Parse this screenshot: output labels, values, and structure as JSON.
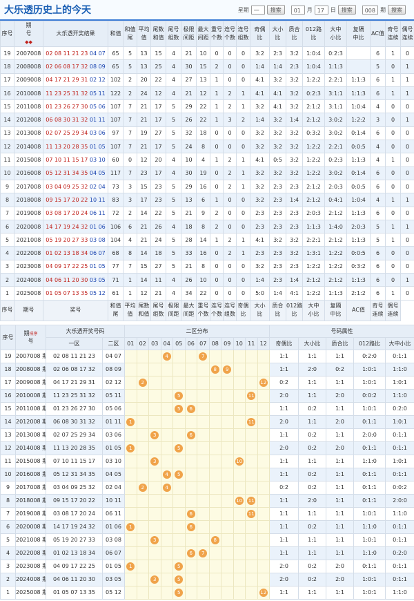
{
  "header": {
    "title": "大乐透历史上的今天",
    "controls": {
      "weekday_label": "星期",
      "weekday": "一",
      "month": "01",
      "month_unit": "月",
      "day": "17",
      "day_unit": "日",
      "issue": "008",
      "issue_unit": "期",
      "search_buttons": [
        "搜索",
        "搜索",
        "搜索"
      ]
    }
  },
  "table1": {
    "headers": [
      [
        "序号"
      ],
      [
        "期",
        "号"
      ],
      [
        "大乐透开奖结果"
      ],
      [
        "和值"
      ],
      [
        "和值",
        "尾"
      ],
      [
        "平均",
        "值"
      ],
      [
        "尾数",
        "和值"
      ],
      [
        "尾号",
        "组数"
      ],
      [
        "极限",
        "间距"
      ],
      [
        "最大",
        "间距"
      ],
      [
        "重号",
        "个数"
      ],
      [
        "连号",
        "个数"
      ],
      [
        "连号",
        "组数"
      ],
      [
        "奇偶",
        "比"
      ],
      [
        "大小",
        "比"
      ],
      [
        "质合",
        "比"
      ],
      [
        "012路",
        "比"
      ],
      [
        "大中",
        "小比"
      ],
      [
        "复隔",
        "中比"
      ],
      [
        "AC值"
      ],
      [
        "奇号",
        "连续"
      ],
      [
        "偶号",
        "连续"
      ]
    ],
    "rows": [
      [
        "19",
        "2007008",
        "02 08 11 21 23",
        "04 07",
        "65",
        "5",
        "13",
        "15",
        "4",
        "21",
        "10",
        "0",
        "0",
        "0",
        "3:2",
        "2:3",
        "3:2",
        "1:0:4",
        "0:2:3",
        "",
        "6",
        "1",
        "0"
      ],
      [
        "18",
        "2008008",
        "02 06 08 17 32",
        "08 09",
        "65",
        "5",
        "13",
        "25",
        "4",
        "30",
        "15",
        "2",
        "0",
        "0",
        "1:4",
        "1:4",
        "2:3",
        "1:0:4",
        "1:1:3",
        "",
        "5",
        "0",
        "1"
      ],
      [
        "17",
        "2009008",
        "04 17 21 29 31",
        "02 12",
        "102",
        "2",
        "20",
        "22",
        "4",
        "27",
        "13",
        "1",
        "0",
        "0",
        "4:1",
        "3:2",
        "3:2",
        "1:2:2",
        "2:2:1",
        "1:1:3",
        "6",
        "1",
        "1"
      ],
      [
        "16",
        "2010008",
        "11 23 25 31 32",
        "05 11",
        "122",
        "2",
        "24",
        "12",
        "4",
        "21",
        "12",
        "1",
        "2",
        "1",
        "4:1",
        "4:1",
        "3:2",
        "0:2:3",
        "3:1:1",
        "1:1:3",
        "6",
        "1",
        "1"
      ],
      [
        "15",
        "2011008",
        "01 23 26 27 30",
        "05 06",
        "107",
        "7",
        "21",
        "17",
        "5",
        "29",
        "22",
        "1",
        "2",
        "1",
        "3:2",
        "4:1",
        "3:2",
        "2:1:2",
        "3:1:1",
        "1:0:4",
        "4",
        "0",
        "0"
      ],
      [
        "14",
        "2012008",
        "06 08 30 31 32",
        "01 11",
        "107",
        "7",
        "21",
        "17",
        "5",
        "26",
        "22",
        "1",
        "3",
        "2",
        "1:4",
        "3:2",
        "1:4",
        "2:1:2",
        "3:0:2",
        "1:2:2",
        "3",
        "0",
        "1"
      ],
      [
        "13",
        "2013008",
        "02 07 25 29 34",
        "03 06",
        "97",
        "7",
        "19",
        "27",
        "5",
        "32",
        "18",
        "0",
        "0",
        "0",
        "3:2",
        "3:2",
        "3:2",
        "0:3:2",
        "3:0:2",
        "0:1:4",
        "6",
        "0",
        "0"
      ],
      [
        "12",
        "2014008",
        "11 13 20 28 35",
        "01 05",
        "107",
        "7",
        "21",
        "17",
        "5",
        "24",
        "8",
        "0",
        "0",
        "0",
        "3:2",
        "3:2",
        "3:2",
        "1:2:2",
        "2:2:1",
        "0:0:5",
        "4",
        "0",
        "0"
      ],
      [
        "11",
        "2015008",
        "07 10 11 15 17",
        "03 10",
        "60",
        "0",
        "12",
        "20",
        "4",
        "10",
        "4",
        "1",
        "2",
        "1",
        "4:1",
        "0:5",
        "3:2",
        "1:2:2",
        "0:2:3",
        "1:1:3",
        "4",
        "1",
        "0"
      ],
      [
        "10",
        "2016008",
        "05 12 31 34 35",
        "04 05",
        "117",
        "7",
        "23",
        "17",
        "4",
        "30",
        "19",
        "0",
        "2",
        "1",
        "3:2",
        "3:2",
        "3:2",
        "1:2:2",
        "3:0:2",
        "0:1:4",
        "6",
        "0",
        "0"
      ],
      [
        "9",
        "2017008",
        "03 04 09 25 32",
        "02 04",
        "73",
        "3",
        "15",
        "23",
        "5",
        "29",
        "16",
        "0",
        "2",
        "1",
        "3:2",
        "2:3",
        "2:3",
        "2:1:2",
        "2:0:3",
        "0:0:5",
        "6",
        "0",
        "0"
      ],
      [
        "8",
        "2018008",
        "09 15 17 20 22",
        "10 11",
        "83",
        "3",
        "17",
        "23",
        "5",
        "13",
        "6",
        "1",
        "0",
        "0",
        "3:2",
        "2:3",
        "1:4",
        "2:1:2",
        "0:4:1",
        "1:0:4",
        "4",
        "1",
        "1"
      ],
      [
        "7",
        "2019008",
        "03 08 17 20 24",
        "06 11",
        "72",
        "2",
        "14",
        "22",
        "5",
        "21",
        "9",
        "2",
        "0",
        "0",
        "2:3",
        "2:3",
        "2:3",
        "2:0:3",
        "2:1:2",
        "1:1:3",
        "6",
        "0",
        "0"
      ],
      [
        "6",
        "2020008",
        "14 17 19 24 32",
        "01 06",
        "106",
        "6",
        "21",
        "26",
        "4",
        "18",
        "8",
        "2",
        "0",
        "0",
        "2:3",
        "2:3",
        "2:3",
        "1:1:3",
        "1:4:0",
        "2:0:3",
        "5",
        "1",
        "1"
      ],
      [
        "5",
        "2021008",
        "05 19 20 27 33",
        "03 08",
        "104",
        "4",
        "21",
        "24",
        "5",
        "28",
        "14",
        "1",
        "2",
        "1",
        "4:1",
        "3:2",
        "3:2",
        "2:2:1",
        "2:1:2",
        "1:1:3",
        "5",
        "1",
        "0"
      ],
      [
        "4",
        "2022008",
        "01 02 13 18 34",
        "06 07",
        "68",
        "8",
        "14",
        "18",
        "5",
        "33",
        "16",
        "0",
        "2",
        "1",
        "2:3",
        "2:3",
        "3:2",
        "1:3:1",
        "1:2:2",
        "0:0:5",
        "6",
        "0",
        "0"
      ],
      [
        "3",
        "2023008",
        "04 09 17 22 25",
        "01 05",
        "77",
        "7",
        "15",
        "27",
        "5",
        "21",
        "8",
        "0",
        "0",
        "0",
        "3:2",
        "2:3",
        "2:3",
        "1:2:2",
        "1:2:2",
        "0:3:2",
        "6",
        "0",
        "0"
      ],
      [
        "2",
        "2024008",
        "04 06 11 20 30",
        "03 05",
        "71",
        "1",
        "14",
        "11",
        "4",
        "26",
        "10",
        "0",
        "0",
        "0",
        "1:4",
        "2:3",
        "1:4",
        "2:1:2",
        "2:1:2",
        "1:1:3",
        "6",
        "0",
        "1"
      ],
      [
        "1",
        "2025008",
        "01 05 07 13 35",
        "05 12",
        "61",
        "1",
        "12",
        "21",
        "4",
        "34",
        "22",
        "0",
        "0",
        "0",
        "5:0",
        "1:4",
        "4:1",
        "1:2:2",
        "1:1:3",
        "2:1:2",
        "6",
        "1",
        "0"
      ]
    ],
    "footer": [
      [
        "序号"
      ],
      [
        "期号"
      ],
      [
        "奖号"
      ],
      [
        "和值",
        "尾"
      ],
      [
        "平均",
        "值"
      ],
      [
        "尾数",
        "和值"
      ],
      [
        "尾号",
        "组数"
      ],
      [
        "极限",
        "间距"
      ],
      [
        "最大",
        "间距"
      ],
      [
        "重号",
        "个数"
      ],
      [
        "连号",
        "个数"
      ],
      [
        "连号",
        "组数"
      ],
      [
        "奇偶",
        "比"
      ],
      [
        "大小",
        "比"
      ],
      [
        "质合",
        "比"
      ],
      [
        "012路",
        "比"
      ],
      [
        "大中",
        "小比"
      ],
      [
        "复隔",
        "中比"
      ],
      [
        "AC值"
      ],
      [
        "奇号",
        "连续"
      ],
      [
        "偶号",
        "连续"
      ]
    ]
  },
  "table2": {
    "head": {
      "seq": "序号",
      "issue": [
        "期",
        "号"
      ],
      "sort": "排序",
      "numbers": "大乐透开奖号码",
      "front": "一区",
      "back": "二区",
      "dist": "二区分布",
      "attr": "号码属性"
    },
    "dist_columns": [
      "01",
      "02",
      "03",
      "04",
      "05",
      "06",
      "07",
      "08",
      "09",
      "10",
      "11",
      "12"
    ],
    "attr_columns": [
      "奇偶比",
      "大小比",
      "质合比",
      "012路比",
      "大中小比"
    ],
    "rows": [
      [
        "19",
        "2007008 期",
        "02 08 11 21 23",
        "04 07",
        [
          4,
          7
        ],
        "1:1",
        "1:1",
        "1:1",
        "0:2:0",
        "0:1:1"
      ],
      [
        "18",
        "2008008 期",
        "02 06 08 17 32",
        "08 09",
        [
          8,
          9
        ],
        "1:1",
        "2:0",
        "0:2",
        "1:0:1",
        "1:1:0"
      ],
      [
        "17",
        "2009008 期",
        "04 17 21 29 31",
        "02 12",
        [
          2,
          12
        ],
        "0:2",
        "1:1",
        "1:1",
        "1:0:1",
        "1:0:1"
      ],
      [
        "16",
        "2010008 期",
        "11 23 25 31 32",
        "05 11",
        [
          5,
          11
        ],
        "2:0",
        "1:1",
        "2:0",
        "0:0:2",
        "1:1:0"
      ],
      [
        "15",
        "2011008 期",
        "01 23 26 27 30",
        "05 06",
        [
          5,
          6
        ],
        "1:1",
        "0:2",
        "1:1",
        "1:0:1",
        "0:2:0"
      ],
      [
        "14",
        "2012008 期",
        "06 08 30 31 32",
        "01 11",
        [
          1,
          11
        ],
        "2:0",
        "1:1",
        "2:0",
        "0:1:1",
        "1:0:1"
      ],
      [
        "13",
        "2013008 期",
        "02 07 25 29 34",
        "03 06",
        [
          3,
          6
        ],
        "1:1",
        "0:2",
        "1:1",
        "2:0:0",
        "0:1:1"
      ],
      [
        "12",
        "2014008 期",
        "11 13 20 28 35",
        "01 05",
        [
          1,
          5
        ],
        "2:0",
        "0:2",
        "2:0",
        "0:1:1",
        "0:1:1"
      ],
      [
        "11",
        "2015008 期",
        "07 10 11 15 17",
        "03 10",
        [
          3,
          10
        ],
        "1:1",
        "1:1",
        "1:1",
        "1:1:0",
        "1:0:1"
      ],
      [
        "10",
        "2016008 期",
        "05 12 31 34 35",
        "04 05",
        [
          4,
          5
        ],
        "1:1",
        "0:2",
        "1:1",
        "0:1:1",
        "0:1:1"
      ],
      [
        "9",
        "2017008 期",
        "03 04 09 25 32",
        "02 04",
        [
          2,
          4
        ],
        "0:2",
        "0:2",
        "1:1",
        "0:1:1",
        "0:0:2"
      ],
      [
        "8",
        "2018008 期",
        "09 15 17 20 22",
        "10 11",
        [
          10,
          11
        ],
        "1:1",
        "2:0",
        "1:1",
        "0:1:1",
        "2:0:0"
      ],
      [
        "7",
        "2019008 期",
        "03 08 17 20 24",
        "06 11",
        [
          6,
          11
        ],
        "1:1",
        "1:1",
        "1:1",
        "1:0:1",
        "1:1:0"
      ],
      [
        "6",
        "2020008 期",
        "14 17 19 24 32",
        "01 06",
        [
          1,
          6
        ],
        "1:1",
        "0:2",
        "1:1",
        "1:1:0",
        "0:1:1"
      ],
      [
        "5",
        "2021008 期",
        "05 19 20 27 33",
        "03 08",
        [
          3,
          8
        ],
        "1:1",
        "1:1",
        "1:1",
        "1:0:1",
        "0:1:1"
      ],
      [
        "4",
        "2022008 期",
        "01 02 13 18 34",
        "06 07",
        [
          6,
          7
        ],
        "1:1",
        "1:1",
        "1:1",
        "1:1:0",
        "0:2:0"
      ],
      [
        "3",
        "2023008 期",
        "04 09 17 22 25",
        "01 05",
        [
          1,
          5
        ],
        "2:0",
        "0:2",
        "2:0",
        "0:1:1",
        "0:1:1"
      ],
      [
        "2",
        "2024008 期",
        "04 06 11 20 30",
        "03 05",
        [
          3,
          5
        ],
        "2:0",
        "0:2",
        "2:0",
        "1:0:1",
        "0:1:1"
      ],
      [
        "1",
        "2025008 期",
        "01 05 07 13 35",
        "05 12",
        [
          5,
          12
        ],
        "1:1",
        "1:1",
        "1:1",
        "1:0:1",
        "1:1:0"
      ]
    ]
  }
}
